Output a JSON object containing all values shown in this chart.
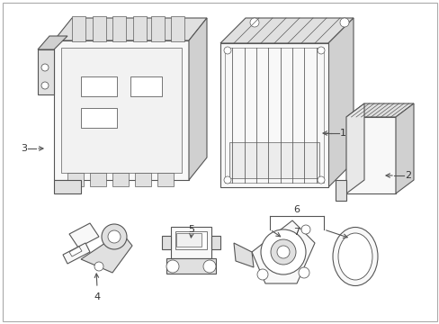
{
  "background_color": "#ffffff",
  "line_color": "#555555",
  "line_width": 0.8,
  "label_fontsize": 8,
  "figsize": [
    4.89,
    3.6
  ],
  "dpi": 100,
  "border_color": "#cccccc",
  "face_color": "#f8f8f8",
  "shadow_color": "#e0e0e0",
  "dark_color": "#d0d0d0"
}
